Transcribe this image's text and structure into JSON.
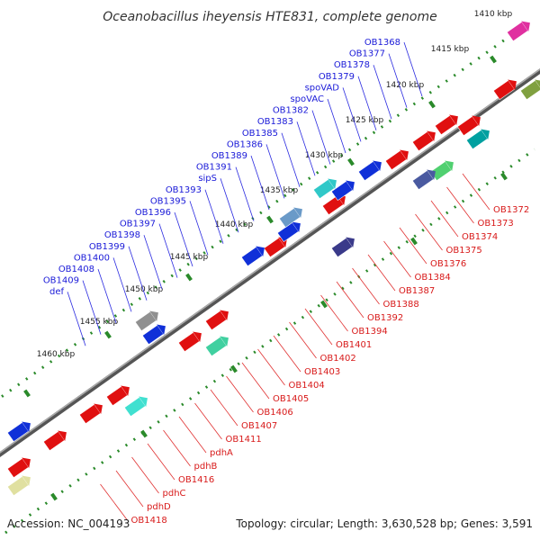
{
  "title": "Oceanobacillus iheyensis HTE831, complete genome",
  "footer": {
    "accession": "Accession: NC_004193",
    "topology": "Topology: circular; Length: 3,630,528 bp; Genes: 3,591"
  },
  "kbp_ticks": [
    "1410 kbp",
    "1415 kbp",
    "1420 kbp",
    "1425 kbp",
    "1430 kbp",
    "1435 kbp",
    "1440 kbp",
    "1445 kbp",
    "1450 kbp",
    "1455 kbp",
    "1460 kbp"
  ],
  "top_labels": [
    "OB1368",
    "OB1377",
    "OB1378",
    "OB1379",
    "spoVAD",
    "spoVAC",
    "OB1382",
    "OB1383",
    "OB1385",
    "OB1386",
    "OB1389",
    "OB1391",
    "sipS",
    "OB1393",
    "OB1395",
    "OB1396",
    "OB1397",
    "OB1398",
    "OB1399",
    "OB1400",
    "OB1408",
    "OB1409",
    "def"
  ],
  "bottom_labels": [
    "OB1372",
    "OB1373",
    "OB1374",
    "OB1375",
    "OB1376",
    "OB1384",
    "OB1387",
    "OB1388",
    "OB1392",
    "OB1394",
    "OB1401",
    "OB1402",
    "OB1403",
    "OB1404",
    "OB1405",
    "OB1406",
    "OB1407",
    "OB1411",
    "pdhA",
    "pdhB",
    "OB1416",
    "pdhC",
    "pdhD",
    "OB1418"
  ],
  "colors": {
    "forward_strand": "#1030d8",
    "reverse_strand": "#e01010",
    "backbone": "#555555",
    "tick_green": "#2a8a2a"
  }
}
